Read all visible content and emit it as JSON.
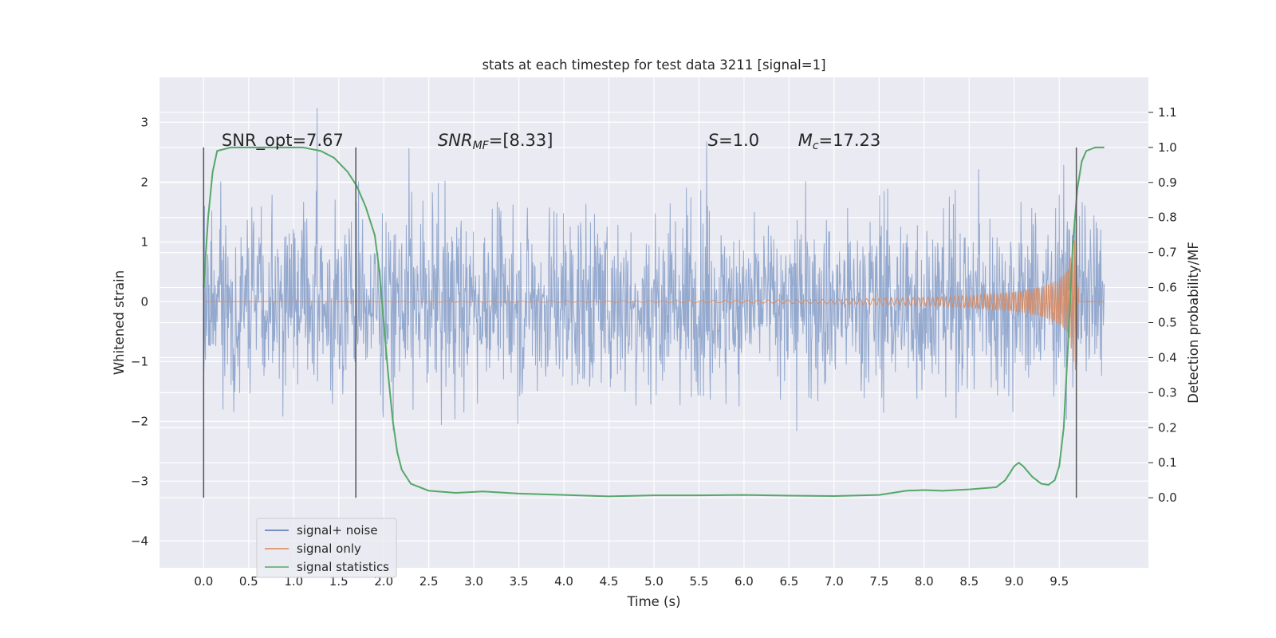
{
  "chart_data": {
    "type": "line",
    "title": "stats at each timestep for test data 3211 [signal=1]",
    "xlabel": "Time (s)",
    "ylabel_left": "Whitened strain",
    "ylabel_right": "Detection probability/MF",
    "xlim": [
      -0.49,
      10.49
    ],
    "ylim_left": [
      -4.45,
      3.75
    ],
    "ylim_right": [
      -0.2,
      1.2
    ],
    "x_ticks": [
      "0.0",
      "0.5",
      "1.0",
      "1.5",
      "2.0",
      "2.5",
      "3.0",
      "3.5",
      "4.0",
      "4.5",
      "5.0",
      "5.5",
      "6.0",
      "6.5",
      "7.0",
      "7.5",
      "8.0",
      "8.5",
      "9.0",
      "9.5"
    ],
    "y_left_ticks": [
      "3",
      "2",
      "1",
      "0",
      "−1",
      "−2",
      "−3",
      "−4"
    ],
    "y_right_ticks": [
      "1.1",
      "1.0",
      "0.9",
      "0.8",
      "0.7",
      "0.6",
      "0.5",
      "0.4",
      "0.3",
      "0.2",
      "0.1",
      "0.0"
    ],
    "grid": true,
    "legend_position": "lower left",
    "annotations": {
      "snr_opt": "SNR_opt=7.67",
      "snr_mf_sym": "SNR",
      "snr_mf_sub": "MF",
      "snr_mf_val": "=[8.33]",
      "s_sym": "S",
      "s_val": "=1.0",
      "mc_sym": "M",
      "mc_sub": "c",
      "mc_val": "=17.23"
    },
    "vertical_markers": [
      0.0,
      1.69,
      9.69
    ],
    "series": [
      {
        "name": "signal+ noise",
        "axis": "left",
        "color": "#4c72b0",
        "description": "whitened noise plus injected signal, approx. within [-2.6, 2.6] with spikes",
        "x_range": [
          0.0,
          10.0
        ],
        "envelope": [
          -2.2,
          2.2
        ]
      },
      {
        "name": "signal only",
        "axis": "left",
        "color": "#dd8452",
        "description": "injected chirp, near zero until ~5 s then growing",
        "x": [
          0.0,
          5.0,
          6.0,
          7.0,
          8.0,
          8.5,
          9.0,
          9.3,
          9.5,
          9.6,
          9.68,
          9.72,
          10.0
        ],
        "amplitude": [
          0.0,
          0.01,
          0.02,
          0.04,
          0.07,
          0.1,
          0.16,
          0.25,
          0.38,
          0.55,
          1.2,
          0.0,
          0.0
        ]
      },
      {
        "name": "signal statistics",
        "axis": "right",
        "color": "#55a868",
        "x": [
          0.0,
          0.05,
          0.1,
          0.15,
          0.3,
          0.6,
          0.9,
          1.1,
          1.3,
          1.45,
          1.6,
          1.7,
          1.8,
          1.9,
          1.95,
          2.0,
          2.05,
          2.1,
          2.15,
          2.2,
          2.3,
          2.5,
          2.8,
          3.1,
          3.5,
          4.0,
          4.5,
          5.0,
          5.5,
          6.0,
          6.5,
          7.0,
          7.5,
          7.8,
          8.0,
          8.2,
          8.5,
          8.8,
          8.9,
          9.0,
          9.05,
          9.1,
          9.2,
          9.3,
          9.38,
          9.45,
          9.5,
          9.55,
          9.6,
          9.65,
          9.7,
          9.75,
          9.8,
          9.9,
          10.0
        ],
        "y": [
          0.6,
          0.8,
          0.93,
          0.99,
          1.0,
          1.0,
          1.0,
          1.0,
          0.99,
          0.97,
          0.93,
          0.89,
          0.83,
          0.75,
          0.65,
          0.5,
          0.35,
          0.22,
          0.13,
          0.08,
          0.04,
          0.02,
          0.014,
          0.018,
          0.012,
          0.008,
          0.004,
          0.007,
          0.007,
          0.008,
          0.006,
          0.005,
          0.008,
          0.02,
          0.022,
          0.02,
          0.024,
          0.03,
          0.05,
          0.09,
          0.1,
          0.09,
          0.06,
          0.04,
          0.037,
          0.05,
          0.09,
          0.2,
          0.45,
          0.72,
          0.88,
          0.96,
          0.99,
          1.0,
          1.0
        ]
      }
    ]
  }
}
